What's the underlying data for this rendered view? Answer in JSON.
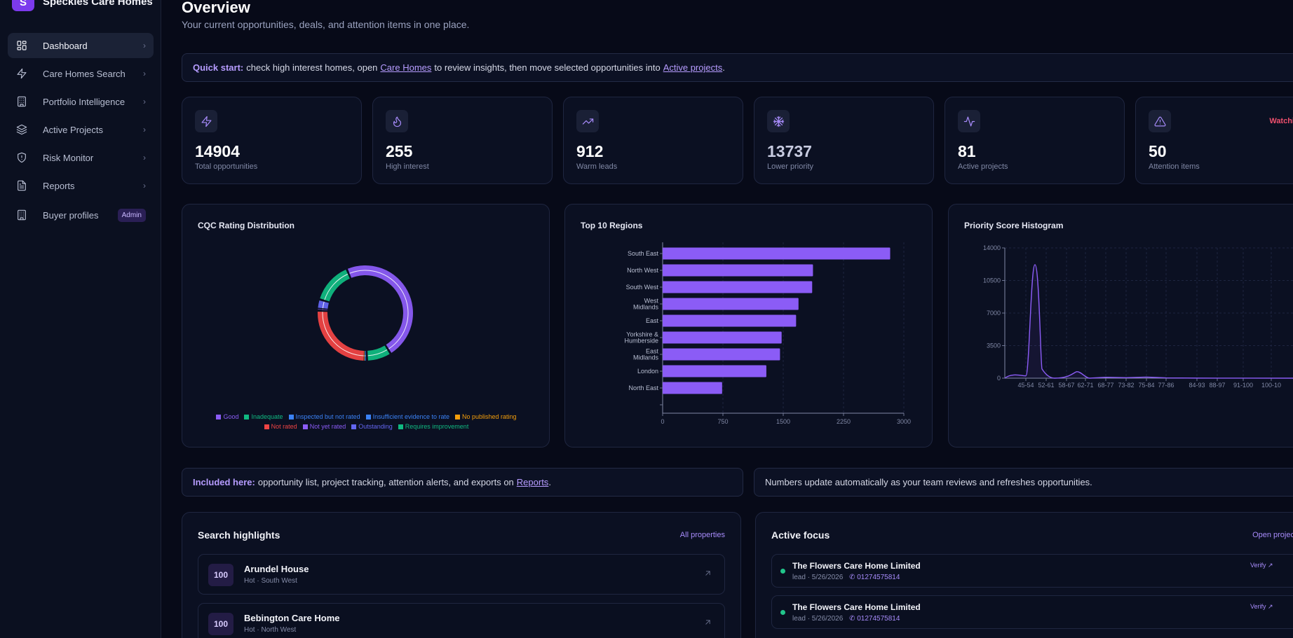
{
  "brand": {
    "logo_letter": "S",
    "name": "Speckles Care Homes"
  },
  "sidebar": {
    "items": [
      {
        "label": "Dashboard",
        "icon": "dashboard-icon",
        "active": true
      },
      {
        "label": "Care Homes Search",
        "icon": "lightning-icon"
      },
      {
        "label": "Portfolio Intelligence",
        "icon": "building-icon"
      },
      {
        "label": "Active Projects",
        "icon": "layers-icon"
      },
      {
        "label": "Risk Monitor",
        "icon": "shield-alert-icon"
      },
      {
        "label": "Reports",
        "icon": "document-icon"
      }
    ],
    "extra": {
      "label": "Buyer profiles",
      "icon": "building-icon",
      "badge": "Admin"
    }
  },
  "header": {
    "title": "Overview",
    "subtitle": "Your current opportunities, deals, and attention items in one place."
  },
  "quick_start": {
    "lead": "Quick start:",
    "text1": "check high interest homes, open",
    "link1": "Care Homes",
    "text2": "to review insights, then move selected opportunities into",
    "link2": "Active projects",
    "text3": "."
  },
  "kpis": [
    {
      "value": "14904",
      "label": "Total opportunities",
      "icon": "lightning-icon"
    },
    {
      "value": "255",
      "label": "High interest",
      "icon": "flame-icon"
    },
    {
      "value": "912",
      "label": "Warm leads",
      "icon": "trending-up-icon"
    },
    {
      "value": "13737",
      "label": "Lower priority",
      "icon": "snowflake-icon"
    },
    {
      "value": "81",
      "label": "Active projects",
      "icon": "activity-icon"
    },
    {
      "value": "50",
      "label": "Attention items",
      "icon": "warning-icon",
      "flag": "Watchi"
    }
  ],
  "chart_data": [
    {
      "type": "pie",
      "title": "CQC Rating Distribution",
      "categories": [
        "Good",
        "Inadequate",
        "Inspected but not rated",
        "Insufficient evidence to rate",
        "No published rating",
        "Not rated",
        "Not yet rated",
        "Outstanding",
        "Requires improvement"
      ],
      "values": [
        47.5,
        8.3,
        0.3,
        0.2,
        0.3,
        25.6,
        0.6,
        3.2,
        14.0
      ],
      "colors": [
        "#8b5cf6",
        "#10b981",
        "#3b82f6",
        "#3b82f6",
        "#f59e0b",
        "#ef4444",
        "#8b5cf6",
        "#6366f1",
        "#10b981"
      ]
    },
    {
      "type": "bar",
      "title": "Top 10 Regions",
      "categories": [
        "South East",
        "North West",
        "South West",
        "West Midlands",
        "East",
        "Yorkshire & Humberside",
        "East Midlands",
        "London",
        "North East",
        ""
      ],
      "values": [
        2830,
        1870,
        1860,
        1690,
        1660,
        1480,
        1460,
        1290,
        740,
        0
      ],
      "xlim": [
        0,
        3000
      ],
      "xticks": [
        "0",
        "750",
        "1500",
        "2250",
        "3000"
      ],
      "color": "#8b5cf6"
    },
    {
      "type": "area",
      "title": "Priority Score Histogram",
      "x": [
        "45-54",
        "52-61",
        "58-67",
        "62-71",
        "68-77",
        "73-82",
        "75-84",
        "77-86",
        "84-93",
        "88-97",
        "91-100",
        "100-10"
      ],
      "y": [
        250,
        12200,
        500,
        700,
        100,
        50,
        120,
        30,
        10,
        5,
        0,
        0
      ],
      "ylim": [
        0,
        14000
      ],
      "yticks": [
        "0",
        "3500",
        "7000",
        "10500",
        "14000"
      ],
      "color": "#8b5cf6"
    }
  ],
  "included": {
    "lead": "Included here:",
    "text": "opportunity list, project tracking, attention alerts, and exports on",
    "link": "Reports",
    "end": "."
  },
  "numbers_note": "Numbers update automatically as your team reviews and refreshes opportunities.",
  "search_highlights": {
    "title": "Search highlights",
    "link": "All properties",
    "rows": [
      {
        "score": "100",
        "name": "Arundel House",
        "meta": "Hot · South West"
      },
      {
        "score": "100",
        "name": "Bebington Care Home",
        "meta": "Hot · North West"
      }
    ]
  },
  "active_focus": {
    "title": "Active focus",
    "link": "Open projec",
    "rows": [
      {
        "name": "The Flowers Care Home Limited",
        "meta": "lead · 5/26/2026",
        "phone": "01274575814",
        "action": "Verify"
      },
      {
        "name": "The Flowers Care Home Limited",
        "meta": "lead · 5/26/2026",
        "phone": "01274575814",
        "action": "Verify"
      }
    ]
  },
  "theme": {
    "accent": "#8b5cf6",
    "background": "#070a18",
    "panel": "#0b1022",
    "danger": "#f0506e",
    "success": "#22c58b"
  }
}
